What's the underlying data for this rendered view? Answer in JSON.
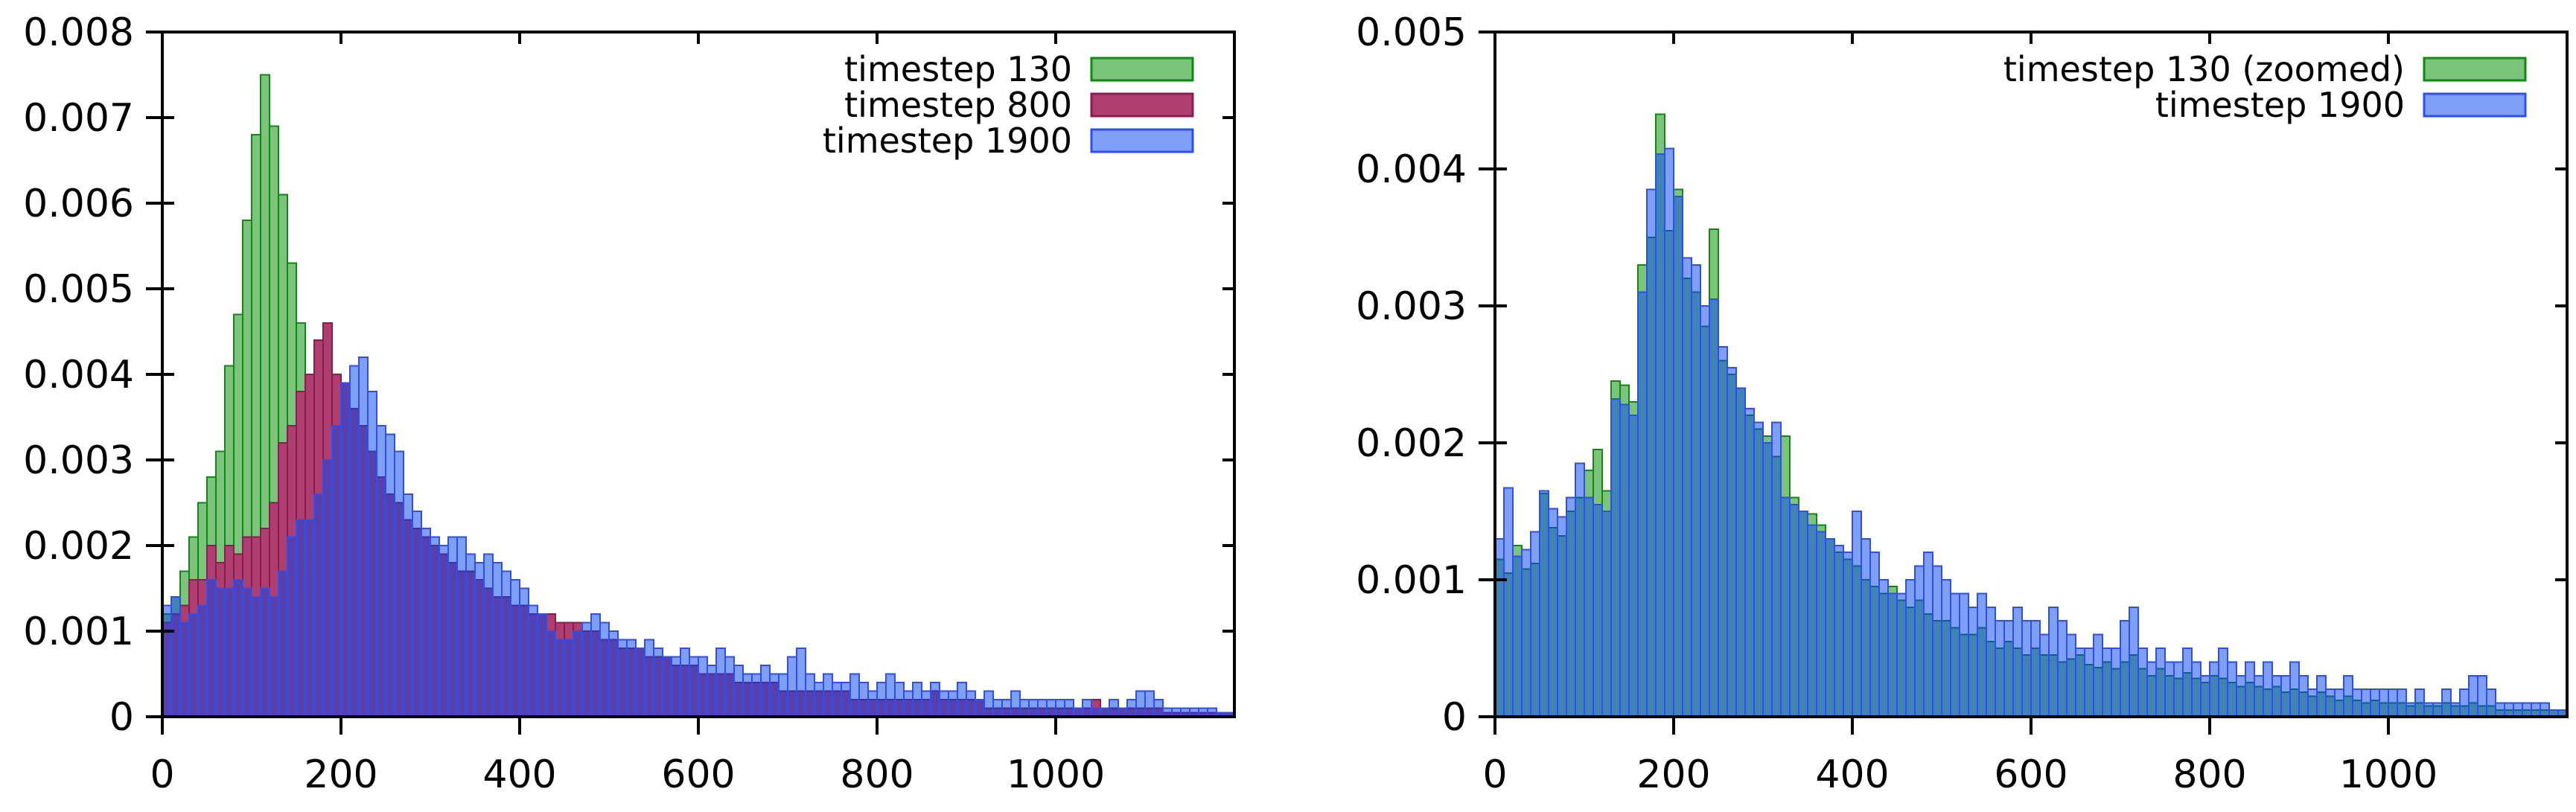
{
  "figure": {
    "background": "#ffffff",
    "description": "Two side-by-side gnuplot histograms of timestep distributions"
  },
  "chart_data": [
    {
      "type": "bar",
      "subtype": "overlaid-histogram",
      "title": "",
      "xlabel": "",
      "ylabel": "",
      "xlim": [
        0,
        1200
      ],
      "ylim": [
        0,
        0.008
      ],
      "bin_width": 10,
      "x_start": 0,
      "grid": false,
      "legend_position": "top-right",
      "xticks": [
        0,
        200,
        400,
        600,
        800,
        1000
      ],
      "xtick_labels": [
        "0",
        "200",
        "400",
        "600",
        "800",
        "1000"
      ],
      "yticks": [
        0,
        0.001,
        0.002,
        0.003,
        0.004,
        0.005,
        0.006,
        0.007,
        0.008
      ],
      "ytick_labels": [
        "0",
        "0.001",
        "0.002",
        "0.003",
        "0.004",
        "0.005",
        "0.006",
        "0.007",
        "0.008"
      ],
      "series": [
        {
          "name": "timestep 130",
          "fill": "#7cc47d",
          "border": "#0e8a10",
          "legend_fill": "#7cc47d",
          "legend_border": "#0e8a10",
          "values": [
            0.0012,
            0.0014,
            0.0017,
            0.0021,
            0.0025,
            0.0028,
            0.0031,
            0.0041,
            0.0047,
            0.0058,
            0.0068,
            0.0075,
            0.0069,
            0.0061,
            0.0053,
            0.0046,
            0.0036,
            0.0029,
            0.0024,
            0.0021,
            0.0019,
            0.0018,
            0.0017,
            0.0016,
            0.0015,
            0.0014,
            0.0014,
            0.0013,
            0.0013,
            0.0012,
            0.0012,
            0.0011,
            0.0011,
            0.001,
            0.001,
            0.0009,
            0.0009,
            0.0009,
            0.0008,
            0.0008,
            0.0008,
            0.0007,
            0.0007,
            0.0007,
            0.0006,
            0.0006,
            0.0006,
            0.0006,
            0.0005,
            0.0005,
            0.0005,
            0.0005,
            0.0004,
            0.0004,
            0.0004,
            0.0004,
            0.0004,
            0.0003,
            0.0003,
            0.0003,
            0.0003,
            0.0003,
            0.0003,
            0.0002,
            0.0002,
            0.0002,
            0.0002,
            0.0002,
            0.0002,
            0.0002,
            0.0002,
            0.0002,
            0.0002,
            0.0001,
            0.0001,
            0.0001,
            0.0001,
            0.0001,
            0.0001,
            0.0001,
            0.0001,
            0.0001,
            0.0001,
            0.0001,
            0.0001,
            0.0001,
            0.0001,
            0.0001,
            0.0001,
            0.0001,
            0.0001,
            0.0001,
            0.0001,
            0.0001,
            0.0001,
            0.0001,
            5e-05,
            5e-05,
            5e-05,
            5e-05,
            5e-05,
            5e-05,
            5e-05,
            5e-05,
            5e-05,
            5e-05,
            5e-05,
            5e-05,
            5e-05,
            5e-05,
            5e-05,
            5e-05,
            5e-05,
            5e-05,
            5e-05,
            5e-05,
            5e-05,
            5e-05,
            5e-05,
            5e-05
          ]
        },
        {
          "name": "timestep 800",
          "fill": "#ac3f6f",
          "border": "#8c1c50",
          "legend_fill": "#ac3f6f",
          "legend_border": "#8c1c50",
          "values": [
            0.0011,
            0.0012,
            0.0013,
            0.0016,
            0.0016,
            0.002,
            0.0018,
            0.002,
            0.0019,
            0.0021,
            0.0021,
            0.0022,
            0.0025,
            0.0032,
            0.0034,
            0.0038,
            0.004,
            0.0044,
            0.0046,
            0.004,
            0.0039,
            0.0036,
            0.0034,
            0.0031,
            0.0028,
            0.0026,
            0.0025,
            0.0023,
            0.0022,
            0.0021,
            0.002,
            0.0019,
            0.0018,
            0.0017,
            0.0017,
            0.0016,
            0.0015,
            0.0014,
            0.0014,
            0.0013,
            0.0013,
            0.0012,
            0.0012,
            0.0012,
            0.0011,
            0.0011,
            0.0011,
            0.001,
            0.001,
            0.0009,
            0.0009,
            0.0008,
            0.0008,
            0.0008,
            0.0007,
            0.0007,
            0.0007,
            0.0006,
            0.0006,
            0.0006,
            0.0005,
            0.0005,
            0.0005,
            0.0005,
            0.0004,
            0.0004,
            0.0004,
            0.0004,
            0.0004,
            0.0003,
            0.0003,
            0.0003,
            0.0003,
            0.0003,
            0.0003,
            0.0003,
            0.0003,
            0.0002,
            0.0002,
            0.0002,
            0.0002,
            0.0002,
            0.0002,
            0.0002,
            0.0002,
            0.0002,
            0.0003,
            0.0002,
            0.0002,
            0.0002,
            0.0002,
            0.0002,
            0.0001,
            0.0001,
            0.0001,
            0.0001,
            0.0001,
            0.0001,
            0.0001,
            0.0001,
            0.0001,
            0.0001,
            0.0001,
            0.0001,
            0.0002,
            0.0001,
            0.0001,
            0.0001,
            0.0001,
            0.0001,
            0.0001,
            0.0001,
            5e-05,
            5e-05,
            5e-05,
            5e-05,
            5e-05,
            5e-05,
            5e-05,
            5e-05
          ]
        },
        {
          "name": "timestep 1900",
          "fill": "rgba(0,64,240,0.5)",
          "border": "#2e4ef0",
          "legend_fill": "#80a0f8",
          "legend_border": "#2e4ef0",
          "values": [
            0.0013,
            0.0014,
            0.0011,
            0.0012,
            0.0013,
            0.0016,
            0.0015,
            0.0015,
            0.0016,
            0.0015,
            0.0014,
            0.0015,
            0.0014,
            0.0017,
            0.0021,
            0.0023,
            0.0023,
            0.0026,
            0.003,
            0.0034,
            0.0039,
            0.0041,
            0.0042,
            0.0038,
            0.0034,
            0.0033,
            0.0031,
            0.0026,
            0.0024,
            0.0022,
            0.0021,
            0.002,
            0.0021,
            0.0021,
            0.0019,
            0.0018,
            0.0019,
            0.0018,
            0.0017,
            0.0016,
            0.0015,
            0.0013,
            0.0012,
            0.001,
            0.0009,
            0.0009,
            0.001,
            0.0011,
            0.0012,
            0.0011,
            0.001,
            0.0009,
            0.0009,
            0.0008,
            0.0009,
            0.0008,
            0.0007,
            0.0007,
            0.0008,
            0.0007,
            0.0007,
            0.0006,
            0.0008,
            0.0007,
            0.0006,
            0.0005,
            0.0005,
            0.0006,
            0.0005,
            0.0005,
            0.0007,
            0.0008,
            0.0005,
            0.0004,
            0.0005,
            0.0004,
            0.0004,
            0.0005,
            0.0004,
            0.0003,
            0.0004,
            0.0005,
            0.0004,
            0.0003,
            0.0004,
            0.0003,
            0.0004,
            0.0003,
            0.0003,
            0.0004,
            0.0003,
            0.0002,
            0.0003,
            0.0002,
            0.0002,
            0.0003,
            0.0002,
            0.0002,
            0.0002,
            0.0002,
            0.0002,
            0.0002,
            0.0001,
            0.0002,
            0.0001,
            0.0001,
            0.0002,
            0.0001,
            0.0002,
            0.0003,
            0.0003,
            0.0002,
            0.0001,
            0.0001,
            0.0001,
            0.0001,
            0.0001,
            0.0001,
            5e-05,
            5e-05
          ]
        }
      ]
    },
    {
      "type": "bar",
      "subtype": "overlaid-histogram",
      "title": "",
      "xlabel": "",
      "ylabel": "",
      "xlim": [
        0,
        1200
      ],
      "ylim": [
        0,
        0.005
      ],
      "bin_width": 10,
      "x_start": 0,
      "grid": false,
      "legend_position": "top-right",
      "xticks": [
        0,
        200,
        400,
        600,
        800,
        1000
      ],
      "xtick_labels": [
        "0",
        "200",
        "400",
        "600",
        "800",
        "1000"
      ],
      "yticks": [
        0,
        0.001,
        0.002,
        0.003,
        0.004,
        0.005
      ],
      "ytick_labels": [
        "0",
        "0.001",
        "0.002",
        "0.003",
        "0.004",
        "0.005"
      ],
      "series": [
        {
          "name": "timestep 130 (zoomed)",
          "fill": "#7cc47d",
          "border": "#0e8a10",
          "legend_fill": "#7cc47d",
          "legend_border": "#0e8a10",
          "values": [
            0.00115,
            0.00105,
            0.00125,
            0.00108,
            0.00112,
            0.00163,
            0.00138,
            0.00132,
            0.0015,
            0.0016,
            0.0018,
            0.00195,
            0.00165,
            0.00245,
            0.00242,
            0.0023,
            0.0033,
            0.0035,
            0.0044,
            0.00355,
            0.00385,
            0.0032,
            0.0031,
            0.00285,
            0.00356,
            0.0026,
            0.0025,
            0.0024,
            0.0022,
            0.0021,
            0.00205,
            0.0019,
            0.00205,
            0.0016,
            0.0015,
            0.00148,
            0.0014,
            0.0013,
            0.0012,
            0.00115,
            0.0011,
            0.001,
            0.00095,
            0.0009,
            0.00095,
            0.00085,
            0.0008,
            0.00085,
            0.00075,
            0.0007,
            0.0007,
            0.00065,
            0.0006,
            0.0006,
            0.00065,
            0.00055,
            0.0005,
            0.00055,
            0.0005,
            0.00045,
            0.0005,
            0.00045,
            0.00045,
            0.0004,
            0.00042,
            0.00045,
            0.00038,
            0.00036,
            0.0004,
            0.00035,
            0.0004,
            0.00045,
            0.00035,
            0.0003,
            0.00035,
            0.0003,
            0.00028,
            0.00032,
            0.00028,
            0.00025,
            0.0003,
            0.00028,
            0.00025,
            0.00022,
            0.00025,
            0.00022,
            0.0002,
            0.00022,
            0.00018,
            0.0002,
            0.00018,
            0.00015,
            0.00018,
            0.00015,
            0.00012,
            0.00015,
            0.00012,
            0.0001,
            0.00012,
            0.0001,
            0.0001,
            0.0001,
            8e-05,
            0.0001,
            8e-05,
            8e-05,
            0.0001,
            8e-05,
            8e-05,
            0.0001,
            8e-05,
            8e-05,
            5e-05,
            5e-05,
            5e-05,
            5e-05,
            5e-05,
            5e-05,
            5e-05,
            5e-05
          ]
        },
        {
          "name": "timestep 1900",
          "fill": "rgba(0,64,240,0.5)",
          "border": "#2e4ef0",
          "legend_fill": "#80a0f8",
          "legend_border": "#2e4ef0",
          "values": [
            0.0013,
            0.00167,
            0.00117,
            0.00122,
            0.00135,
            0.00165,
            0.00152,
            0.00146,
            0.0016,
            0.00185,
            0.0016,
            0.00155,
            0.0015,
            0.00232,
            0.00228,
            0.0022,
            0.0031,
            0.00385,
            0.00411,
            0.00415,
            0.0038,
            0.00335,
            0.0033,
            0.003,
            0.00305,
            0.0027,
            0.00255,
            0.0024,
            0.00225,
            0.00215,
            0.002,
            0.00215,
            0.0016,
            0.00155,
            0.0015,
            0.0014,
            0.00135,
            0.0013,
            0.00125,
            0.0012,
            0.0015,
            0.0013,
            0.0012,
            0.001,
            0.0009,
            0.0009,
            0.001,
            0.0011,
            0.0012,
            0.0011,
            0.001,
            0.0009,
            0.0009,
            0.0008,
            0.0009,
            0.0008,
            0.0007,
            0.0007,
            0.0008,
            0.0007,
            0.0007,
            0.0006,
            0.0008,
            0.0007,
            0.0006,
            0.0005,
            0.0005,
            0.0006,
            0.0005,
            0.0005,
            0.0007,
            0.0008,
            0.0005,
            0.0004,
            0.0005,
            0.0004,
            0.0004,
            0.0005,
            0.0004,
            0.0003,
            0.0004,
            0.0005,
            0.0004,
            0.0003,
            0.0004,
            0.0003,
            0.0004,
            0.0003,
            0.0003,
            0.0004,
            0.0003,
            0.0002,
            0.0003,
            0.0002,
            0.0002,
            0.0003,
            0.0002,
            0.0002,
            0.0002,
            0.0002,
            0.0002,
            0.0002,
            0.0001,
            0.0002,
            0.0001,
            0.0001,
            0.0002,
            0.0001,
            0.0002,
            0.0003,
            0.0003,
            0.0002,
            0.0001,
            0.0001,
            0.0001,
            0.0001,
            0.0001,
            0.0001,
            5e-05,
            5e-05
          ]
        }
      ]
    }
  ]
}
